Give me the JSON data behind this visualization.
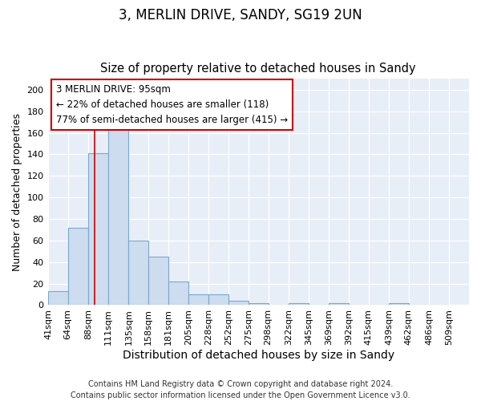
{
  "title1": "3, MERLIN DRIVE, SANDY, SG19 2UN",
  "title2": "Size of property relative to detached houses in Sandy",
  "xlabel": "Distribution of detached houses by size in Sandy",
  "ylabel": "Number of detached properties",
  "bar_edges": [
    41,
    64,
    88,
    111,
    135,
    158,
    181,
    205,
    228,
    252,
    275,
    298,
    322,
    345,
    369,
    392,
    415,
    439,
    462,
    486,
    509
  ],
  "bar_heights": [
    13,
    72,
    141,
    168,
    60,
    45,
    22,
    10,
    10,
    4,
    2,
    0,
    2,
    0,
    2,
    0,
    0,
    2,
    0,
    0
  ],
  "bar_color": "#cddcee",
  "bar_edge_color": "#7aa8cc",
  "red_line_x": 95,
  "annotation_line1": "3 MERLIN DRIVE: 95sqm",
  "annotation_line2": "← 22% of detached houses are smaller (118)",
  "annotation_line3": "77% of semi-detached houses are larger (415) →",
  "annotation_box_color": "#ffffff",
  "annotation_border_color": "#cc0000",
  "ylim": [
    0,
    210
  ],
  "yticks": [
    0,
    20,
    40,
    60,
    80,
    100,
    120,
    140,
    160,
    180,
    200
  ],
  "fig_bg_color": "#ffffff",
  "plot_bg_color": "#e8eef8",
  "footer": "Contains HM Land Registry data © Crown copyright and database right 2024.\nContains public sector information licensed under the Open Government Licence v3.0.",
  "title1_fontsize": 12,
  "title2_fontsize": 10.5,
  "xlabel_fontsize": 10,
  "ylabel_fontsize": 9,
  "tick_fontsize": 8,
  "annotation_fontsize": 8.5,
  "footer_fontsize": 7
}
